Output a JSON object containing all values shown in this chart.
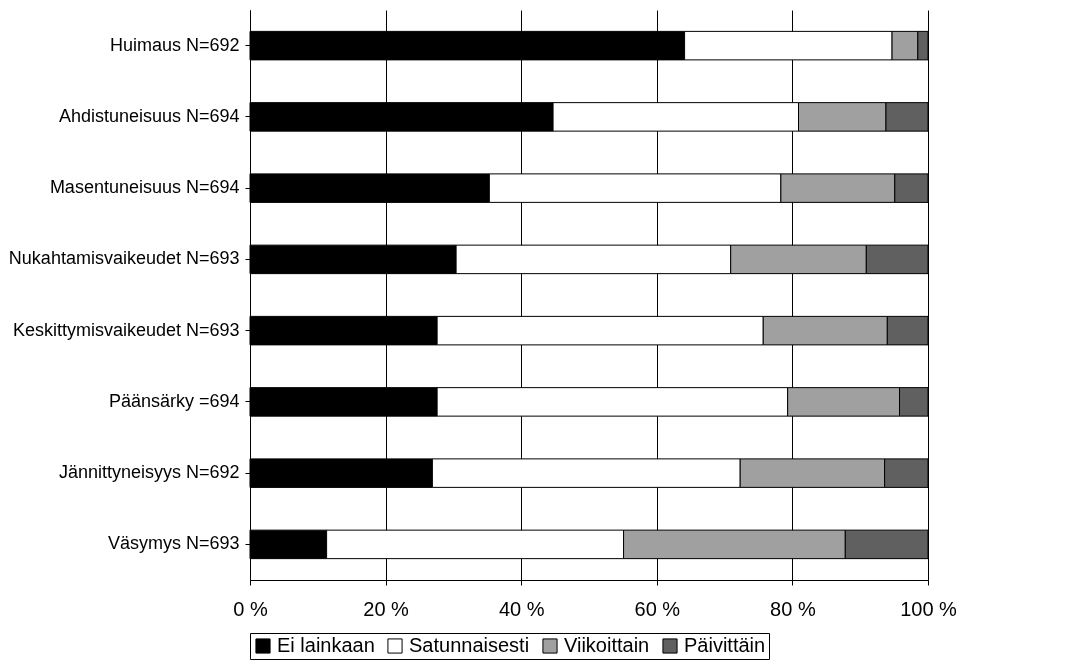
{
  "chart_data": {
    "type": "bar",
    "orientation": "horizontal",
    "stacked": true,
    "categories": [
      "Huimaus N=692",
      "Ahdistuneisuus N=694",
      "Masentuneisuus N=694",
      "Nukahtamisvaikeudet N=693",
      "Keskittymisvaikeudet N=693",
      "Päänsärky =694",
      "Jännittyneisyys N=692",
      "Väsymys N=693"
    ],
    "series": [
      {
        "name": "Ei lainkaan",
        "color": "#000000",
        "values": [
          64.1,
          44.7,
          35.3,
          30.4,
          27.6,
          27.6,
          26.9,
          11.3
        ]
      },
      {
        "name": "Satunnaisesti",
        "color": "#ffffff",
        "values": [
          30.6,
          36.2,
          43.0,
          40.5,
          48.1,
          51.7,
          45.4,
          43.8
        ]
      },
      {
        "name": "Viikoittain",
        "color": "#a0a0a0",
        "values": [
          3.8,
          12.9,
          16.8,
          20.0,
          18.3,
          16.5,
          21.3,
          32.7
        ]
      },
      {
        "name": "Päivittäin",
        "color": "#606060",
        "values": [
          1.5,
          6.2,
          4.9,
          9.1,
          6.0,
          4.2,
          6.4,
          12.2
        ]
      }
    ],
    "xlim": [
      0,
      100
    ],
    "xticks": [
      {
        "value": 0,
        "label": "0 %"
      },
      {
        "value": 20,
        "label": "20 %"
      },
      {
        "value": 40,
        "label": "40 %"
      },
      {
        "value": 60,
        "label": "60 %"
      },
      {
        "value": 80,
        "label": "80 %"
      },
      {
        "value": 100,
        "label": "100 %"
      }
    ],
    "grid": "x",
    "legend": "bottom"
  }
}
